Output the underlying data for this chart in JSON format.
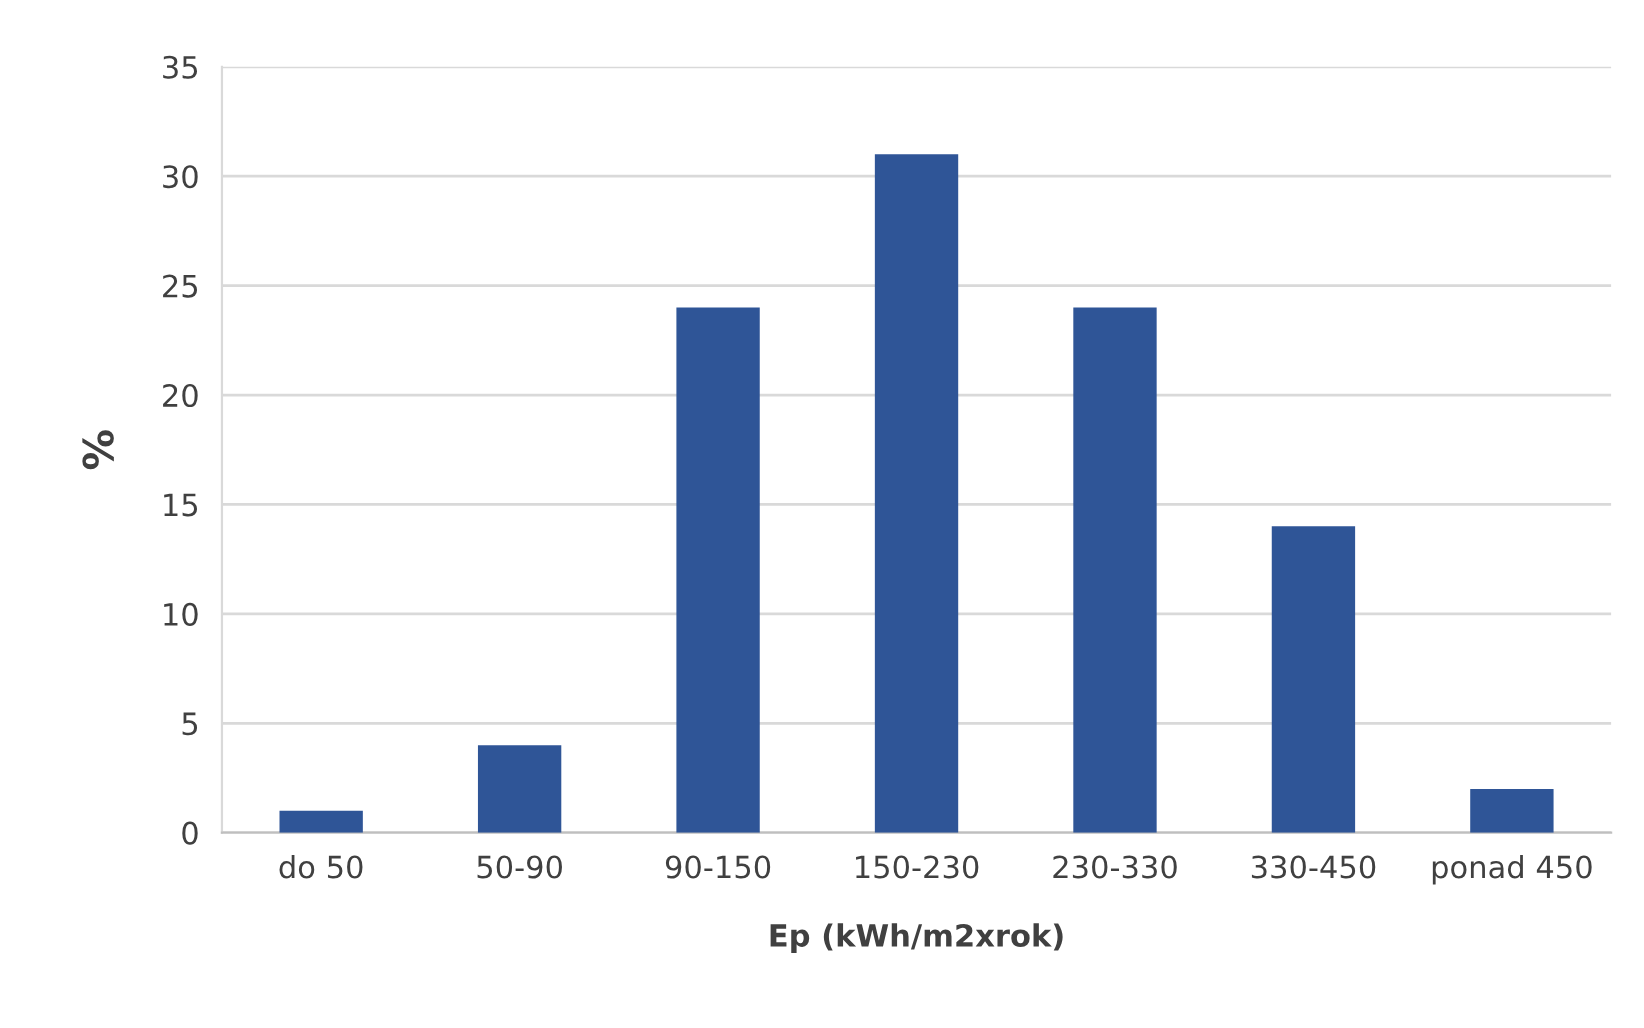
{
  "chart_data": {
    "type": "bar",
    "xlabel": "Ep (kWh/m2xrok)",
    "ylabel": "%",
    "categories": [
      "do 50",
      "50-90",
      "90-150",
      "150-230",
      "230-330",
      "330-450",
      "ponad 450"
    ],
    "values": [
      1,
      4,
      24,
      31,
      24,
      14,
      2
    ],
    "color": "#2f5597",
    "ylim": [
      0,
      35
    ],
    "yticks": [
      0,
      5,
      10,
      15,
      20,
      25,
      30,
      35
    ],
    "grid": "y",
    "legend": false
  }
}
